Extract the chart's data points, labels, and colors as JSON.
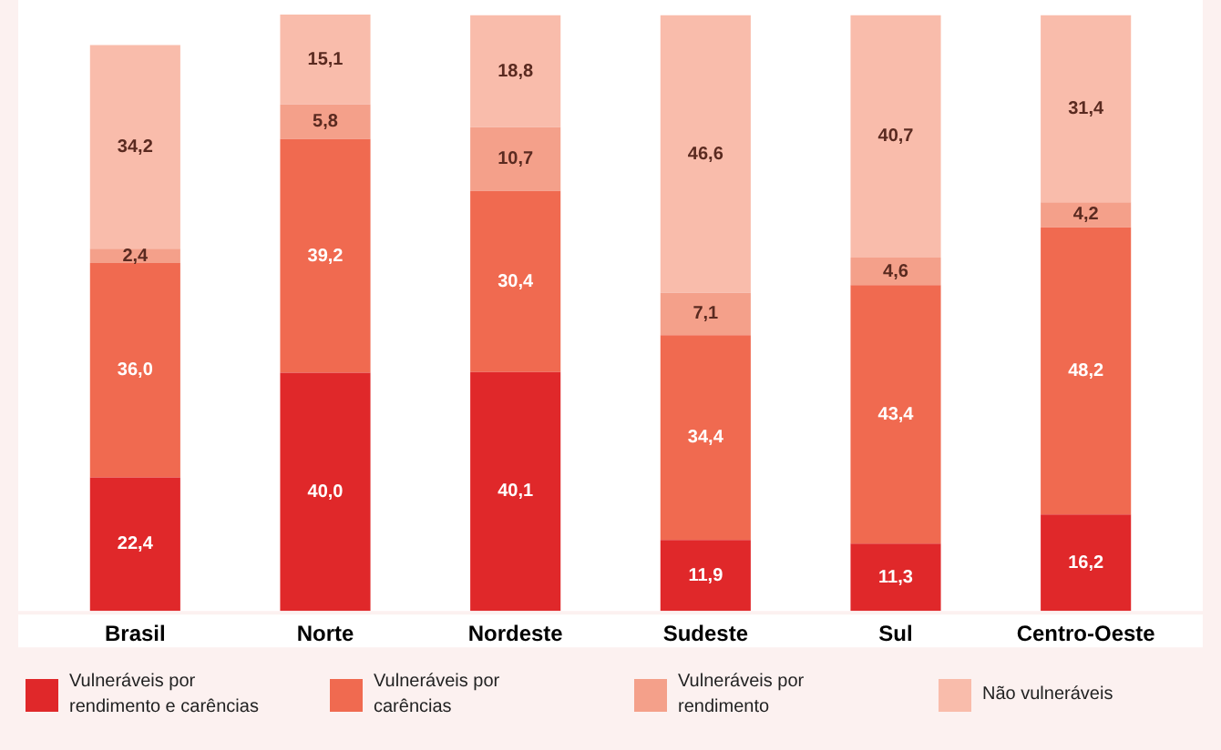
{
  "chart_data": {
    "type": "bar",
    "stacked": true,
    "legend": "bottom",
    "grid": false,
    "tick_labels": "x",
    "categories": [
      "Brasil",
      "Norte",
      "Nordeste",
      "Sudeste",
      "Sul",
      "Centro-Oeste"
    ],
    "series": [
      {
        "name": "Vulneráveis por rendimento e carências",
        "color": "#e0282a",
        "values": [
          22.4,
          40.0,
          40.1,
          11.9,
          11.3,
          16.2
        ],
        "value_labels": [
          "22,4",
          "40,0",
          "40,1",
          "11,9",
          "11,3",
          "16,2"
        ]
      },
      {
        "name": "Vulneráveis por carências",
        "color": "#f06a50",
        "values": [
          36.0,
          39.2,
          30.4,
          34.4,
          43.4,
          48.2
        ],
        "value_labels": [
          "36,0",
          "39,2",
          "30,4",
          "34,4",
          "43,4",
          "48,2"
        ]
      },
      {
        "name": "Vulneráveis por rendimento",
        "color": "#f4a08a",
        "values": [
          2.4,
          5.8,
          10.7,
          7.1,
          4.6,
          4.2
        ],
        "value_labels": [
          "2,4",
          "5,8",
          "10,7",
          "7,1",
          "4,6",
          "4,2"
        ]
      },
      {
        "name": "Não vulneráveis",
        "color": "#f9bcab",
        "values": [
          34.2,
          15.1,
          18.8,
          46.6,
          40.7,
          31.4
        ],
        "value_labels": [
          "34,2",
          "15,1",
          "18,8",
          "46,6",
          "40,7",
          "31,4"
        ]
      }
    ]
  }
}
